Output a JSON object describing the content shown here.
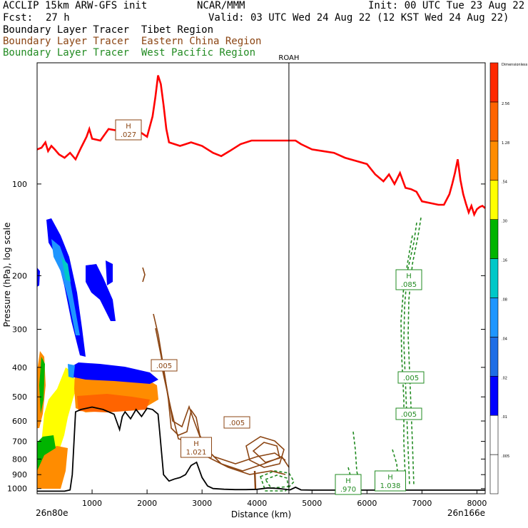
{
  "header": {
    "model": "ACCLIP 15km ARW-GFS init",
    "org": "NCAR/MMM",
    "init": "Init: 00 UTC Tue 23 Aug 22",
    "fcst_label": "Fcst:",
    "fcst_value": "27 h",
    "valid": "Valid: 03 UTC Wed 24 Aug 22 (12 KST Wed 24 Aug 22)"
  },
  "legend": [
    {
      "label": "Boundary Layer Tracer  Tibet Region",
      "color": "#000000"
    },
    {
      "label": "Boundary Layer Tracer  Eastern China Region",
      "color": "#8b4513"
    },
    {
      "label": "Boundary Layer Tracer  West Pacific Region",
      "color": "#228b22"
    }
  ],
  "chart_data": {
    "type": "line",
    "xlabel": "Distance (km)",
    "ylabel": "Pressure (hPa), log scale",
    "x_ticks": [
      1000,
      2000,
      3000,
      4000,
      5000,
      6000,
      7000,
      8000
    ],
    "y_ticks": [
      100,
      200,
      300,
      400,
      500,
      600,
      700,
      800,
      900,
      1000
    ],
    "xlim": [
      0,
      8150
    ],
    "ylim": [
      1040,
      40
    ],
    "y_scale": "log",
    "left_endpoint": "26n80e",
    "right_endpoint": "26n166e",
    "marker": {
      "label": "ROAH",
      "x": 4580
    },
    "colorbar_levels": [
      ".005",
      ".01",
      ".02",
      ".04",
      ".08",
      ".16",
      ".30",
      ".54",
      "1.28",
      "2.56",
      "Dimensionless"
    ],
    "colorbar_colors": [
      "#ffffff",
      "#ffffff",
      "#0000ff",
      "#1e6ee6",
      "#1e96ff",
      "#00c8c8",
      "#00b400",
      "#ffff00",
      "#ff8c00",
      "#ff6400",
      "#ff2800"
    ],
    "series": [
      {
        "name": "Tropopause",
        "color": "#ff0000",
        "x": [
          0,
          80,
          150,
          200,
          260,
          320,
          400,
          500,
          600,
          700,
          800,
          900,
          950,
          1000,
          1150,
          1300,
          1500,
          1700,
          1900,
          2000,
          2100,
          2150,
          2200,
          2250,
          2300,
          2350,
          2400,
          2600,
          2800,
          3000,
          3200,
          3350,
          3500,
          3700,
          3900,
          4100,
          4300,
          4500,
          4700,
          4800,
          5000,
          5200,
          5400,
          5600,
          5800,
          6000,
          6150,
          6300,
          6400,
          6500,
          6600,
          6700,
          6800,
          6900,
          7000,
          7200,
          7300,
          7400,
          7500,
          7550,
          7600,
          7650,
          7700,
          7750,
          7800,
          7850,
          7900,
          7950,
          8000,
          8050,
          8100,
          8150
        ],
        "y": [
          77,
          76,
          73,
          78,
          75,
          77,
          80,
          82,
          79,
          83,
          76,
          70,
          66,
          71,
          72,
          66,
          67,
          66,
          68,
          70,
          60,
          52,
          44,
          47,
          55,
          66,
          73,
          75,
          73,
          75,
          79,
          81,
          78,
          74,
          72,
          72,
          72,
          72,
          72,
          74,
          77,
          78,
          79,
          82,
          84,
          86,
          93,
          98,
          93,
          100,
          92,
          103,
          104,
          106,
          114,
          116,
          117,
          117,
          108,
          100,
          92,
          83,
          97,
          108,
          116,
          124,
          118,
          126,
          121,
          119,
          118,
          120
        ]
      },
      {
        "name": "Terrain",
        "color": "#000000",
        "x": [
          0,
          100,
          200,
          350,
          500,
          600,
          640,
          700,
          800,
          1000,
          1200,
          1400,
          1500,
          1550,
          1600,
          1700,
          1800,
          1900,
          2000,
          2100,
          2200,
          2230,
          2300,
          2400,
          2500,
          2600,
          2700,
          2800,
          2900,
          3000,
          3100,
          3200,
          3400,
          3600,
          3800,
          4000,
          4200,
          4400,
          4600,
          4700,
          4800,
          5000,
          6000,
          7000,
          8150
        ],
        "y": [
          1020,
          1020,
          1020,
          1020,
          1020,
          1010,
          900,
          560,
          550,
          540,
          550,
          570,
          640,
          580,
          560,
          590,
          550,
          580,
          545,
          550,
          570,
          650,
          900,
          945,
          930,
          920,
          900,
          840,
          820,
          920,
          980,
          1000,
          1005,
          1008,
          1008,
          1006,
          995,
          1000,
          1010,
          990,
          1010,
          1012,
          1012,
          1012,
          1012
        ]
      }
    ],
    "annotations": [
      {
        "text": "H .027",
        "x": 180,
        "y": 182,
        "color": "#8b4513"
      },
      {
        "text": ".005",
        "x": 230,
        "y": 512,
        "color": "#8b4513"
      },
      {
        "text": ".005",
        "x": 332,
        "y": 592,
        "color": "#8b4513"
      },
      {
        "text": "H 1.021",
        "x": 275,
        "y": 627,
        "color": "#8b4513"
      },
      {
        "text": "H .085",
        "x": 573,
        "y": 392,
        "color": "#228b22"
      },
      {
        "text": ".005",
        "x": 576,
        "y": 529,
        "color": "#228b22"
      },
      {
        "text": ".005",
        "x": 573,
        "y": 580,
        "color": "#228b22"
      },
      {
        "text": "H .970",
        "x": 488,
        "y": 679,
        "color": "#228b22"
      },
      {
        "text": "H 1.038",
        "x": 547,
        "y": 674,
        "color": "#228b22"
      }
    ]
  }
}
